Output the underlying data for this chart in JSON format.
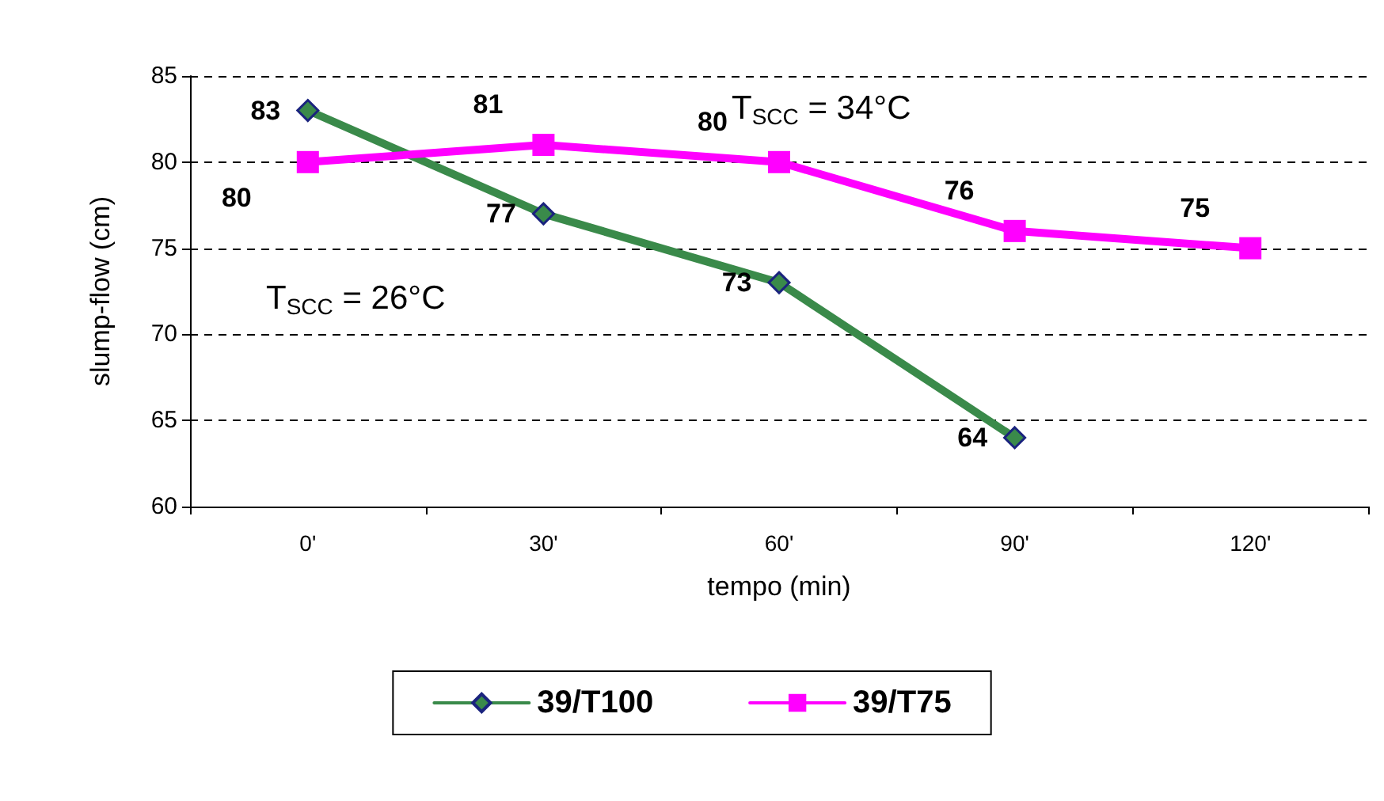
{
  "chart_data": {
    "type": "line",
    "xlabel": "tempo (min)",
    "ylabel": "slump-flow (cm)",
    "categories": [
      "0'",
      "30'",
      "60'",
      "90'",
      "120'"
    ],
    "series": [
      {
        "name": "39/T100",
        "color": "#3a8a4a",
        "marker": "diamond",
        "values": [
          83,
          77,
          73,
          64,
          null
        ]
      },
      {
        "name": "39/T75",
        "color": "#ff00ff",
        "marker": "square",
        "values": [
          80,
          81,
          80,
          76,
          75
        ]
      }
    ],
    "ylim": [
      60,
      85
    ],
    "yticks": [
      60,
      65,
      70,
      75,
      80,
      85
    ],
    "grid": "y",
    "legend": "bottom",
    "data_labels": true,
    "line_style": "solid",
    "annotations": [
      "T$_{SCC}$ = 34°C",
      "T$_{SCC}$ = 26°C"
    ]
  }
}
